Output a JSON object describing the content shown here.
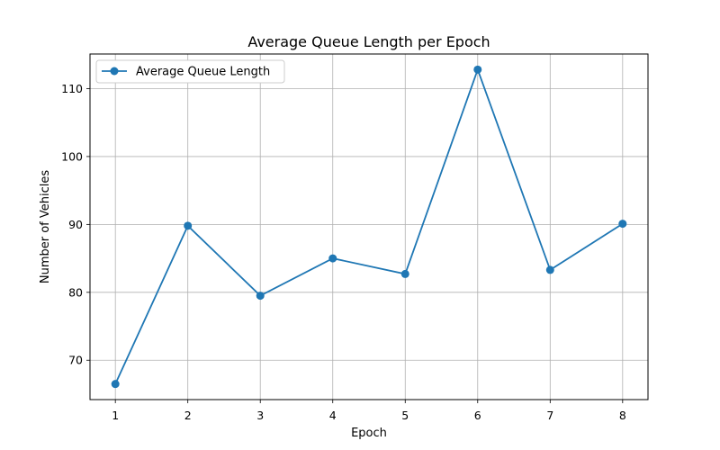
{
  "chart_data": {
    "type": "line",
    "title": "Average Queue Length per Epoch",
    "xlabel": "Epoch",
    "ylabel": "Number of Vehicles",
    "x": [
      1,
      2,
      3,
      4,
      5,
      6,
      7,
      8
    ],
    "series": [
      {
        "name": "Average Queue Length",
        "values": [
          66.5,
          89.8,
          79.5,
          85.0,
          82.7,
          112.8,
          83.3,
          90.1
        ],
        "color": "#1f77b4"
      }
    ],
    "x_ticks": [
      "1",
      "2",
      "3",
      "4",
      "5",
      "6",
      "7",
      "8"
    ],
    "y_ticks": [
      "70",
      "80",
      "90",
      "100",
      "110"
    ],
    "xlim": [
      0.65,
      8.35
    ],
    "ylim": [
      64.2,
      115.1
    ],
    "grid": true,
    "legend_position": "upper-left"
  }
}
